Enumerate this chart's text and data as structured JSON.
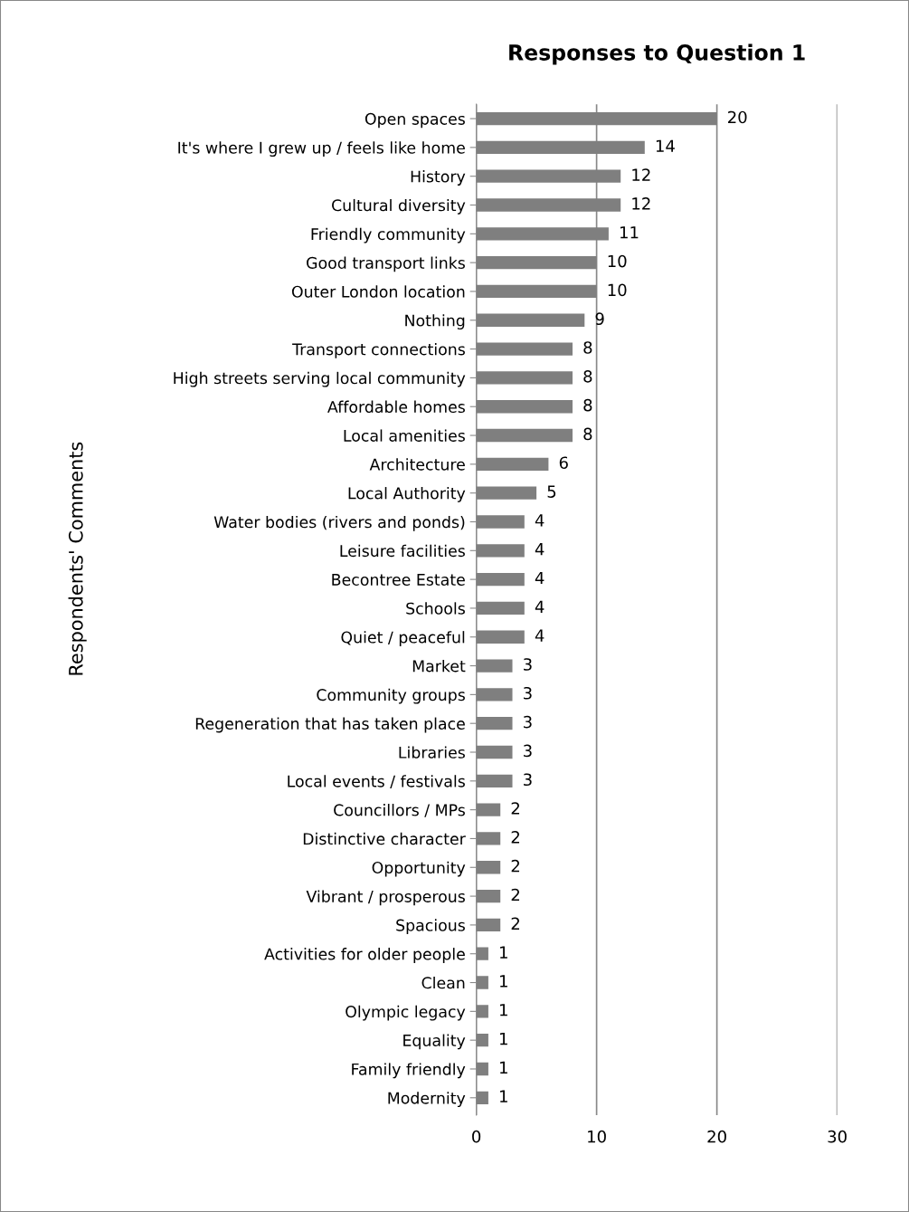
{
  "chart_data": {
    "type": "bar",
    "orientation": "horizontal",
    "title": "Responses to Question 1",
    "ylabel": "Respondents' Comments",
    "categories": [
      "Open spaces",
      "It's where I grew up / feels like home",
      "History",
      "Cultural diversity",
      "Friendly community",
      "Good transport links",
      "Outer London location",
      "Nothing",
      "Transport connections",
      "High streets serving local community",
      "Affordable homes",
      "Local amenities",
      "Architecture",
      "Local Authority",
      "Water bodies (rivers and ponds)",
      "Leisure facilities",
      "Becontree Estate",
      "Schools",
      "Quiet / peaceful",
      "Market",
      "Community groups",
      "Regeneration that has taken place",
      "Libraries",
      "Local events / festivals",
      "Councillors / MPs",
      "Distinctive character",
      "Opportunity",
      "Vibrant / prosperous",
      "Spacious",
      "Activities for older people",
      "Clean",
      "Olympic legacy",
      "Equality",
      "Family friendly",
      "Modernity"
    ],
    "values": [
      20,
      14,
      12,
      12,
      11,
      10,
      10,
      9,
      8,
      8,
      8,
      8,
      6,
      5,
      4,
      4,
      4,
      4,
      4,
      3,
      3,
      3,
      3,
      3,
      2,
      2,
      2,
      2,
      2,
      1,
      1,
      1,
      1,
      1,
      1
    ],
    "color": "#7f7f7f",
    "xlim": [
      0,
      30
    ],
    "xticks": [
      0,
      10,
      20,
      30
    ],
    "grid": "x",
    "data_labels": true
  }
}
